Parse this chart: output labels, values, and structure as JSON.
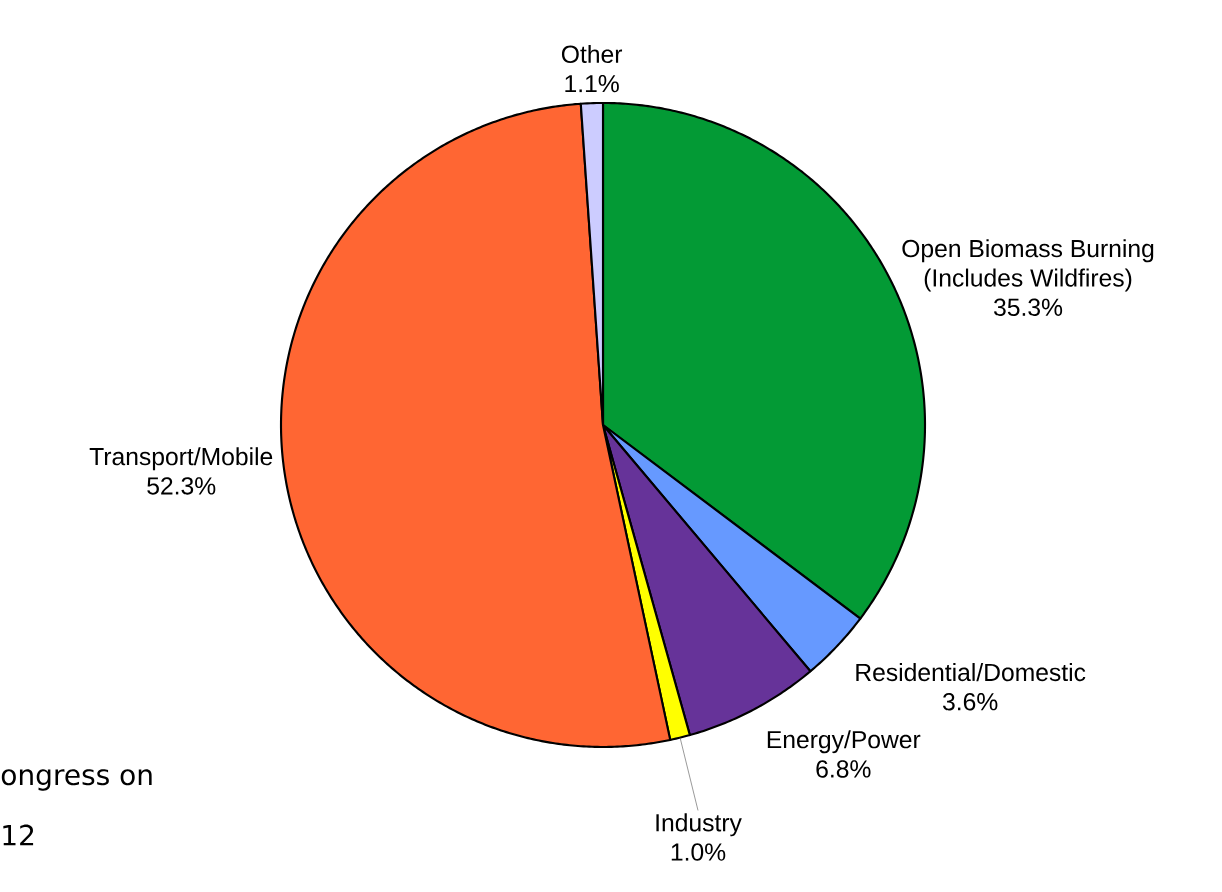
{
  "chart_data": {
    "type": "pie",
    "categories": [
      "Open Biomass Burning (Includes Wildfires)",
      "Residential/Domestic",
      "Energy/Power",
      "Industry",
      "Transport/Mobile",
      "Other"
    ],
    "values": [
      35.3,
      3.6,
      6.8,
      1.0,
      52.3,
      1.1
    ],
    "value_labels": [
      "35.3%",
      "3.6%",
      "6.8%",
      "1.0%",
      "52.3%",
      "1.1%"
    ],
    "colors": [
      "#039a35",
      "#6699ff",
      "#663399",
      "#ffff00",
      "#ff6633",
      "#ccccff"
    ],
    "annotations": [
      "ongress on",
      "12"
    ]
  }
}
